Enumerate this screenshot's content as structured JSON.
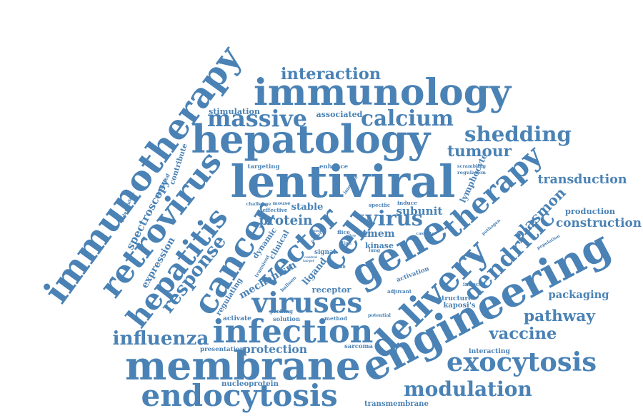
{
  "color": "#4a82b5",
  "words": [
    "immunotherapy",
    "immunology",
    "hepatology",
    "lentiviral",
    "engineering",
    "cell",
    "gene",
    "therapy",
    "delivery",
    "membrane",
    "endocytosis",
    "infection",
    "retrovirus",
    "hepatitis",
    "cancer",
    "vector",
    "viruses",
    "exocytosis",
    "modulation",
    "dendritic",
    "massive",
    "calcium",
    "shedding",
    "interaction",
    "influenza",
    "response",
    "vaccine",
    "pathway",
    "transduction",
    "construction",
    "tumour",
    "virus",
    "protein",
    "plasmon",
    "mechanism",
    "packaging",
    "protection",
    "subunit",
    "tmem",
    "expression",
    "spectroscopy",
    "production",
    "receptor",
    "stimulation",
    "associated",
    "contribute",
    "lymphocyte",
    "ligand",
    "dynamic",
    "regulating",
    "nucleoprotein",
    "transmembrane",
    "interacting",
    "structure",
    "kaposi's",
    "sarcoma",
    "presentation",
    "activation",
    "kinase",
    "stable",
    "targeting",
    "enhance",
    "clinical",
    "signal",
    "solution",
    "method",
    "probing",
    "activate",
    "mediated",
    "independent",
    "induce",
    "specific",
    "effective",
    "mouse",
    "challenge",
    "immune",
    "scrambling",
    "regulation",
    "pathogen",
    "population",
    "adjuvant",
    "potential",
    "result",
    "induced",
    "cassette",
    "occur",
    "transient",
    "sensor",
    "flice",
    "vitro",
    "line",
    "lung",
    "death",
    "review",
    "control",
    "target",
    "balloon"
  ]
}
